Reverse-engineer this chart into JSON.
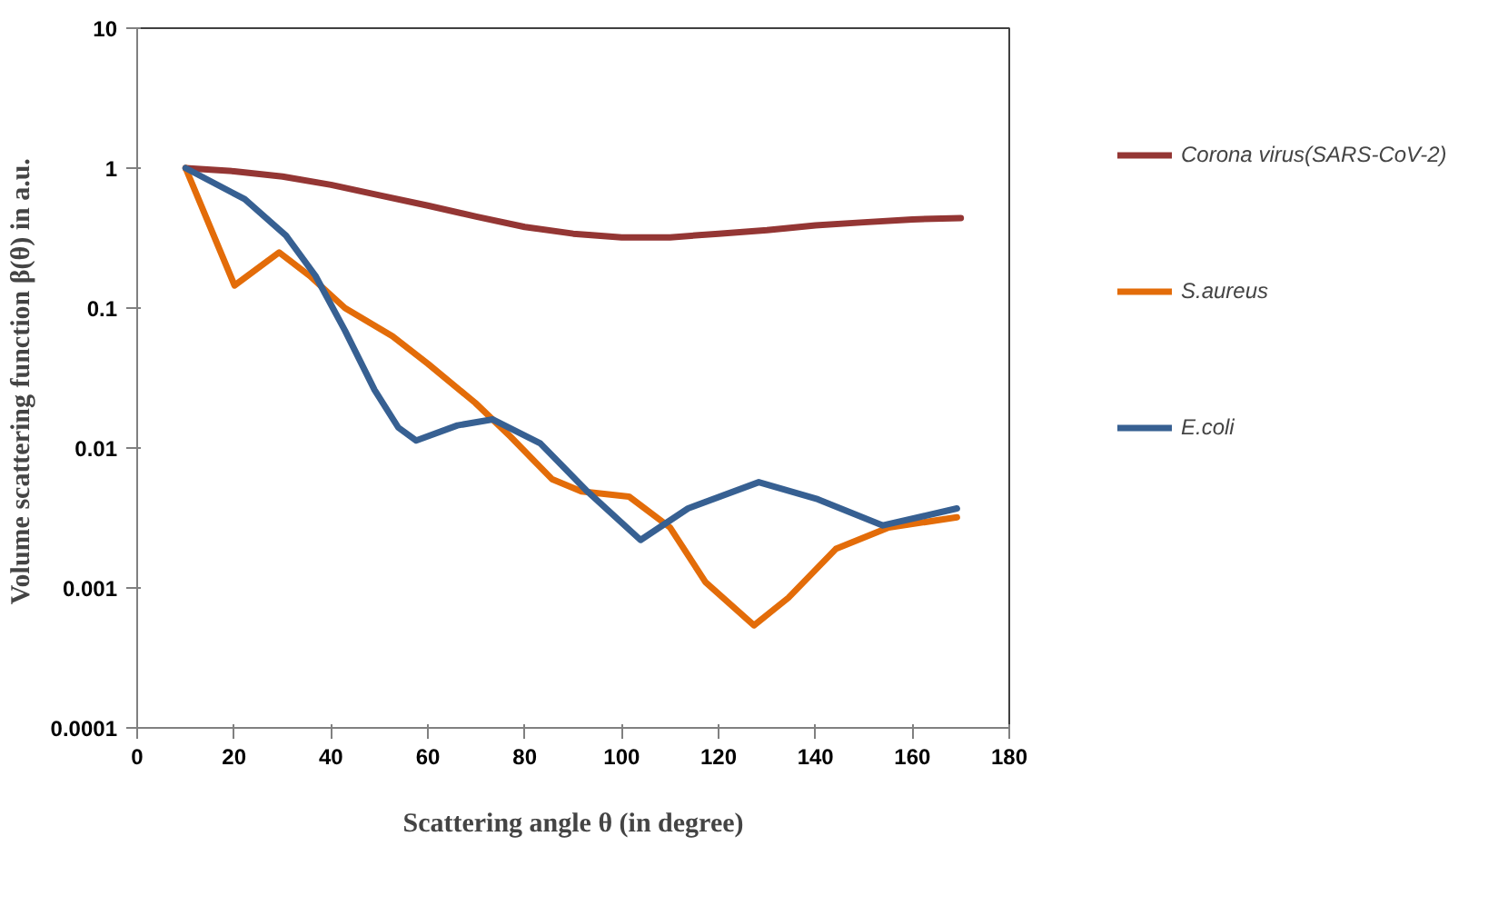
{
  "chart_data": {
    "type": "line",
    "xlabel": "Scattering angle θ (in degree)",
    "ylabel": "Volume scattering function β(θ) in  a.u.",
    "log": "y",
    "grid": false,
    "legend": "right",
    "marker": "none",
    "line_style": "solid",
    "xlim": [
      0,
      180
    ],
    "xticks": [
      0,
      20,
      40,
      60,
      80,
      100,
      120,
      140,
      160,
      180
    ],
    "ylim": [
      0.0001,
      10
    ],
    "yticks": [
      {
        "value": 0.0001,
        "label": "0.0001"
      },
      {
        "value": 0.001,
        "label": "0.001"
      },
      {
        "value": 0.01,
        "label": "0.01"
      },
      {
        "value": 0.1,
        "label": "0.1"
      },
      {
        "value": 1,
        "label": "1"
      },
      {
        "value": 10,
        "label": "10"
      }
    ],
    "series": [
      {
        "name": "Corona virus(SARS-CoV-2)",
        "color": "#943634",
        "x": [
          10,
          20,
          30,
          40,
          50,
          60,
          70,
          80,
          90,
          100,
          110,
          120,
          130,
          140,
          150,
          160,
          170
        ],
        "values": [
          1,
          0.95,
          0.87,
          0.76,
          0.64,
          0.54,
          0.45,
          0.38,
          0.34,
          0.32,
          0.32,
          0.34,
          0.36,
          0.39,
          0.41,
          0.43,
          0.44
        ]
      },
      {
        "name": "S.aureus",
        "color": "#e36c09",
        "x": [
          10,
          20.1,
          29.3,
          35.6,
          42.9,
          52.7,
          60,
          69.8,
          77.1,
          85.6,
          91.7,
          101.5,
          110,
          117.3,
          127.3,
          134.4,
          144.2,
          155.1,
          169.2
        ],
        "values": [
          1,
          0.145,
          0.25,
          0.17,
          0.1,
          0.063,
          0.04,
          0.021,
          0.012,
          0.006,
          0.0049,
          0.0045,
          0.0027,
          0.0011,
          0.00054,
          0.00085,
          0.0019,
          0.0027,
          0.0032
        ]
      },
      {
        "name": "E.coli",
        "color": "#376092",
        "x": [
          10,
          22.2,
          30.7,
          36.8,
          42.9,
          49,
          53.9,
          57.6,
          66.1,
          73.4,
          83.2,
          92.9,
          103.9,
          113.7,
          128.3,
          140.5,
          153.9,
          169.2
        ],
        "values": [
          1,
          0.6,
          0.33,
          0.17,
          0.069,
          0.026,
          0.014,
          0.0113,
          0.0145,
          0.016,
          0.0108,
          0.0049,
          0.0022,
          0.0037,
          0.0057,
          0.0043,
          0.0028,
          0.0037
        ]
      }
    ]
  }
}
